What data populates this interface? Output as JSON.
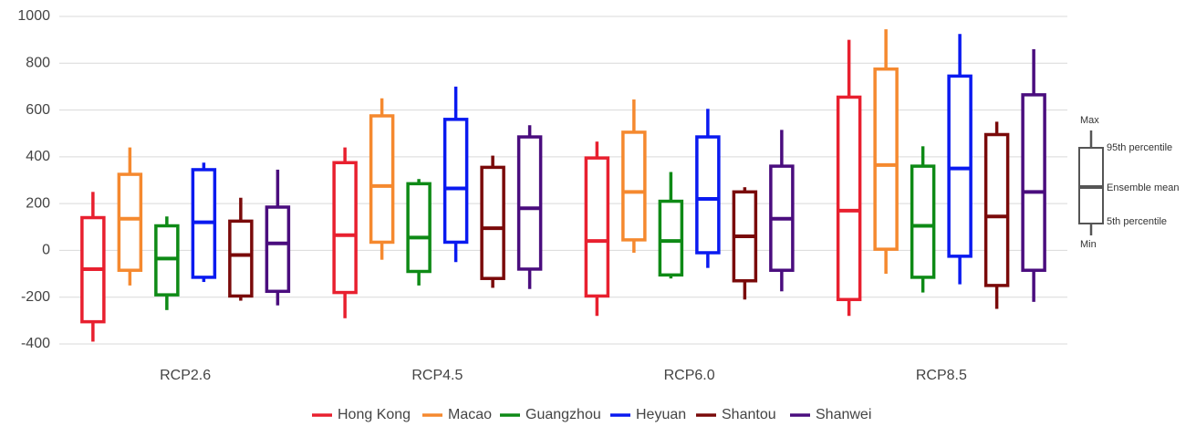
{
  "chart_data": {
    "type": "box",
    "categories": [
      "RCP2.6",
      "RCP4.5",
      "RCP6.0",
      "RCP8.5"
    ],
    "ylim": [
      -400,
      1000
    ],
    "yticks": [
      -400,
      -200,
      0,
      200,
      400,
      600,
      800,
      1000
    ],
    "grid": true,
    "series": [
      {
        "name": "Hong Kong",
        "color": "#e8202f",
        "min": [
          -390,
          -290,
          -280,
          -280
        ],
        "p5": [
          -305,
          -180,
          -195,
          -210
        ],
        "mean": [
          -80,
          65,
          40,
          170
        ],
        "p95": [
          140,
          375,
          395,
          655
        ],
        "max": [
          250,
          440,
          465,
          900
        ]
      },
      {
        "name": "Macao",
        "color": "#f5892f",
        "min": [
          -150,
          -40,
          -10,
          -100
        ],
        "p5": [
          -85,
          35,
          45,
          5
        ],
        "mean": [
          135,
          275,
          250,
          365
        ],
        "p95": [
          325,
          575,
          505,
          775
        ],
        "max": [
          440,
          650,
          645,
          945
        ]
      },
      {
        "name": "Guangzhou",
        "color": "#0e8a16",
        "min": [
          -255,
          -150,
          -120,
          -180
        ],
        "p5": [
          -190,
          -90,
          -105,
          -115
        ],
        "mean": [
          -35,
          55,
          40,
          105
        ],
        "p95": [
          105,
          285,
          210,
          360
        ],
        "max": [
          145,
          305,
          335,
          445
        ]
      },
      {
        "name": "Heyuan",
        "color": "#0a1af0",
        "min": [
          -135,
          -50,
          -75,
          -145
        ],
        "p5": [
          -115,
          35,
          -10,
          -25
        ],
        "mean": [
          120,
          265,
          220,
          350
        ],
        "p95": [
          345,
          560,
          485,
          745
        ],
        "max": [
          375,
          700,
          605,
          925
        ]
      },
      {
        "name": "Shantou",
        "color": "#7a0a0a",
        "min": [
          -215,
          -160,
          -210,
          -250
        ],
        "p5": [
          -195,
          -120,
          -130,
          -150
        ],
        "mean": [
          -20,
          95,
          60,
          145
        ],
        "p95": [
          125,
          355,
          250,
          495
        ],
        "max": [
          225,
          405,
          270,
          550
        ]
      },
      {
        "name": "Shanwei",
        "color": "#4a0d7e",
        "min": [
          -235,
          -165,
          -175,
          -220
        ],
        "p5": [
          -175,
          -80,
          -85,
          -85
        ],
        "mean": [
          30,
          180,
          135,
          250
        ],
        "p95": [
          185,
          485,
          360,
          665
        ],
        "max": [
          345,
          535,
          515,
          860
        ]
      }
    ],
    "box_key": {
      "max": "Max",
      "p95": "95th percentile",
      "mean": "Ensemble mean",
      "p5": "5th percentile",
      "min": "Min"
    }
  }
}
